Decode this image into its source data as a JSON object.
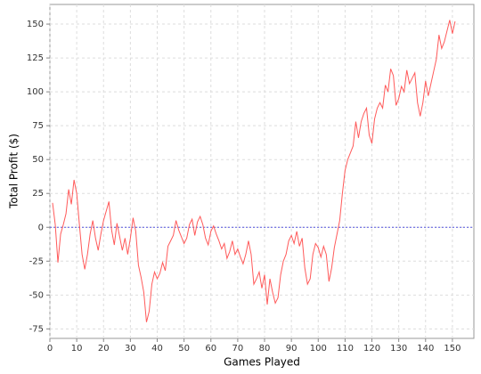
{
  "chart_data": {
    "type": "line",
    "x_label": "Games Played",
    "y_label": "Total Profit ($)",
    "x": [
      1,
      2,
      3,
      4,
      5,
      6,
      7,
      8,
      9,
      10,
      11,
      12,
      13,
      14,
      15,
      16,
      17,
      18,
      19,
      20,
      21,
      22,
      23,
      24,
      25,
      26,
      27,
      28,
      29,
      30,
      31,
      32,
      33,
      34,
      35,
      36,
      37,
      38,
      39,
      40,
      41,
      42,
      43,
      44,
      45,
      46,
      47,
      48,
      49,
      50,
      51,
      52,
      53,
      54,
      55,
      56,
      57,
      58,
      59,
      60,
      61,
      62,
      63,
      64,
      65,
      66,
      67,
      68,
      69,
      70,
      71,
      72,
      73,
      74,
      75,
      76,
      77,
      78,
      79,
      80,
      81,
      82,
      83,
      84,
      85,
      86,
      87,
      88,
      89,
      90,
      91,
      92,
      93,
      94,
      95,
      96,
      97,
      98,
      99,
      100,
      101,
      102,
      103,
      104,
      105,
      106,
      107,
      108,
      109,
      110,
      111,
      112,
      113,
      114,
      115,
      116,
      117,
      118,
      119,
      120,
      121,
      122,
      123,
      124,
      125,
      126,
      127,
      128,
      129,
      130,
      131,
      132,
      133,
      134,
      135,
      136,
      137,
      138,
      139,
      140,
      141,
      142,
      143,
      144,
      145,
      146,
      147,
      148,
      149,
      150,
      151
    ],
    "series": [
      {
        "color": "#ff5a5a",
        "values": [
          18,
          2,
          -26,
          -5,
          2,
          10,
          28,
          17,
          35,
          25,
          2,
          -20,
          -31,
          -20,
          -5,
          5,
          -8,
          -17,
          -5,
          5,
          12,
          19,
          -2,
          -13,
          3,
          -7,
          -17,
          -8,
          -20,
          -8,
          7,
          -3,
          -28,
          -37,
          -48,
          -70,
          -62,
          -42,
          -33,
          -38,
          -34,
          -26,
          -32,
          -14,
          -10,
          -6,
          5,
          -2,
          -7,
          -12,
          -8,
          2,
          6,
          -6,
          4,
          8,
          2,
          -8,
          -13,
          -3,
          1,
          -5,
          -10,
          -16,
          -12,
          -23,
          -18,
          -10,
          -20,
          -16,
          -22,
          -27,
          -20,
          -10,
          -20,
          -42,
          -38,
          -33,
          -45,
          -35,
          -57,
          -38,
          -48,
          -56,
          -52,
          -35,
          -25,
          -20,
          -10,
          -6,
          -12,
          -3,
          -14,
          -8,
          -30,
          -42,
          -38,
          -20,
          -12,
          -15,
          -22,
          -14,
          -20,
          -40,
          -30,
          -15,
          -5,
          5,
          25,
          42,
          50,
          55,
          60,
          78,
          66,
          78,
          84,
          88,
          68,
          62,
          80,
          88,
          92,
          88,
          105,
          100,
          117,
          112,
          90,
          95,
          104,
          100,
          116,
          106,
          110,
          114,
          92,
          82,
          92,
          108,
          97,
          106,
          115,
          124,
          142,
          132,
          137,
          145,
          153,
          143,
          152
        ]
      }
    ],
    "xlim": [
      0,
      158
    ],
    "ylim": [
      -82,
      164.5
    ],
    "xticks": [
      0,
      10,
      20,
      30,
      40,
      50,
      60,
      70,
      80,
      90,
      100,
      110,
      120,
      130,
      140,
      150
    ],
    "yticks": [
      -75,
      -50,
      -25,
      0,
      25,
      50,
      75,
      100,
      125,
      150
    ],
    "reference_line": 0,
    "reference_color": "#5555dd",
    "grid": true
  }
}
